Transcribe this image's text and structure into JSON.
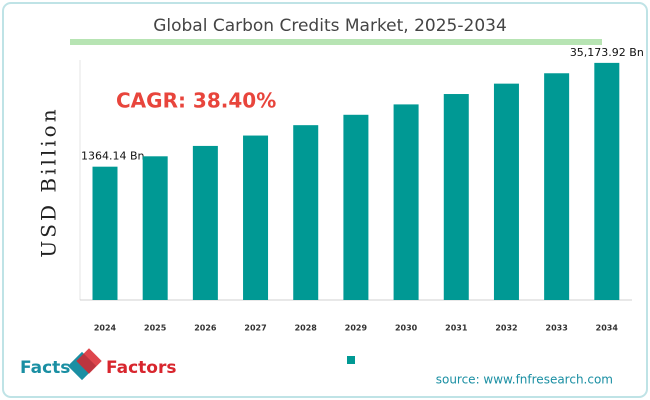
{
  "chart_data": {
    "type": "bar",
    "title": "Global Carbon Credits Market, 2025-2034",
    "y_label": "USD Billion",
    "annotation": "CAGR: 38.40%",
    "source": "source: www.fnfresearch.com",
    "logo": {
      "left": "Facts",
      "right": "Factors"
    },
    "categories": [
      "2024",
      "2025",
      "2026",
      "2027",
      "2028",
      "2029",
      "2030",
      "2031",
      "2032",
      "2033",
      "2034"
    ],
    "values": [
      1364.14,
      1888,
      2613,
      3616,
      5005,
      6927,
      9587,
      13268,
      18363,
      25415,
      35173.92
    ],
    "value_labels": [
      "1364.14 Bn",
      null,
      null,
      null,
      null,
      null,
      null,
      null,
      null,
      null,
      "35,173.92 Bn"
    ],
    "color": "#009994",
    "log_scale": true,
    "ylim": [
      21,
      72000
    ]
  }
}
